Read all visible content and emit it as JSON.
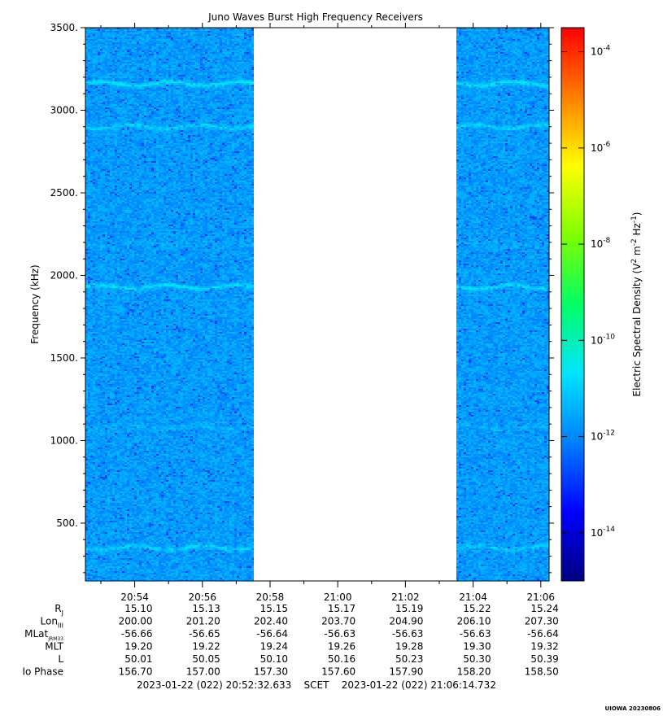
{
  "chart_data": {
    "type": "heatmap",
    "title": "Juno Waves Burst High Frequency Receivers",
    "ylabel": "Frequency (kHz)",
    "ylim": [
      150,
      3500
    ],
    "yticks": [
      500,
      1000,
      1500,
      2000,
      2500,
      3000,
      3500
    ],
    "ytick_labels": [
      "500.",
      "1000.",
      "1500.",
      "2000.",
      "2500.",
      "3000.",
      "3500."
    ],
    "xlim_minutes": [
      "20:52:32.633",
      "21:06:14.732"
    ],
    "xticks": [
      "20:54",
      "20:56",
      "20:58",
      "21:00",
      "21:02",
      "21:04",
      "21:06"
    ],
    "data_gap": [
      "20:57:30",
      "21:03:30"
    ],
    "background_level_log10": -11.7,
    "emission_bands": [
      {
        "freq_khz": 3160,
        "level_log10": -10.6
      },
      {
        "freq_khz": 2900,
        "level_log10": -10.9
      },
      {
        "freq_khz": 2190,
        "level_log10": -11.5
      },
      {
        "freq_khz": 1930,
        "level_log10": -10.7
      },
      {
        "freq_khz": 1080,
        "level_log10": -11.4
      },
      {
        "freq_khz": 350,
        "level_log10": -11.0
      }
    ],
    "colorbar": {
      "label_main": "Electric Spectral Density (V",
      "label_close": ")",
      "scale": "log",
      "range_log10": [
        -15,
        -3.5
      ],
      "ticks": [
        {
          "base": "10",
          "exp": "-4",
          "value_log10": -4
        },
        {
          "base": "10",
          "exp": "-6",
          "value_log10": -6
        },
        {
          "base": "10",
          "exp": "-8",
          "value_log10": -8
        },
        {
          "base": "10",
          "exp": "-10",
          "value_log10": -10
        },
        {
          "base": "10",
          "exp": "-12",
          "value_log10": -12
        },
        {
          "base": "10",
          "exp": "-14",
          "value_log10": -14
        }
      ],
      "colors": [
        "#00007f",
        "#0000ff",
        "#007fff",
        "#00e5ff",
        "#00ff66",
        "#7fff00",
        "#ffff00",
        "#ff7f00",
        "#ff0000"
      ]
    }
  },
  "ephemeris": {
    "rows": [
      {
        "label": "R",
        "sub": "J",
        "values": [
          "15.10",
          "15.13",
          "15.15",
          "15.17",
          "15.19",
          "15.22",
          "15.24"
        ]
      },
      {
        "label": "Lon",
        "sub": "III",
        "values": [
          "200.00",
          "201.20",
          "202.40",
          "203.70",
          "204.90",
          "206.10",
          "207.30"
        ]
      },
      {
        "label": "MLat",
        "sub": "JRM33",
        "values": [
          "-56.66",
          "-56.65",
          "-56.64",
          "-56.63",
          "-56.63",
          "-56.63",
          "-56.64"
        ]
      },
      {
        "label": "MLT",
        "sub": "",
        "values": [
          "19.20",
          "19.22",
          "19.24",
          "19.26",
          "19.28",
          "19.30",
          "19.32"
        ]
      },
      {
        "label": "L",
        "sub": "",
        "values": [
          "50.01",
          "50.05",
          "50.10",
          "50.16",
          "50.23",
          "50.30",
          "50.39"
        ]
      },
      {
        "label": "Io Phase",
        "sub": "",
        "values": [
          "156.70",
          "157.00",
          "157.30",
          "157.60",
          "157.90",
          "158.20",
          "158.50"
        ]
      }
    ]
  },
  "footer": {
    "time_range": "2023-01-22 (022) 20:52:32.633    SCET    2023-01-22 (022) 21:06:14.732",
    "stamp": "UIOWA 20230806"
  }
}
